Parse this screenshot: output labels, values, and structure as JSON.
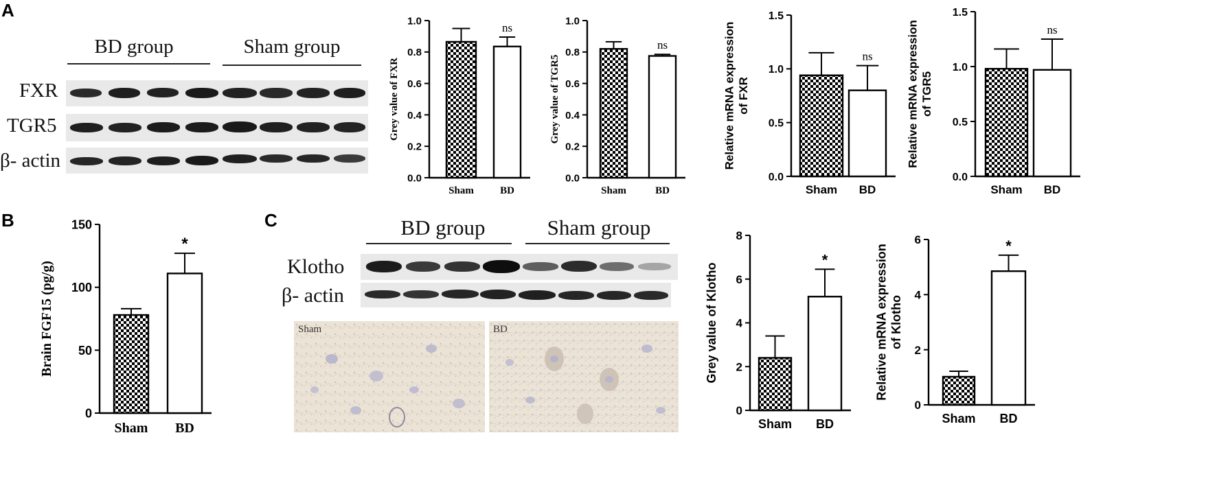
{
  "panel_letters": {
    "a": "A",
    "b": "B",
    "c": "C"
  },
  "western_blots": {
    "panel_a": {
      "group_labels": [
        "BD group",
        "Sham group"
      ],
      "row_labels": [
        "FXR",
        "TGR5",
        "β- actin"
      ]
    },
    "panel_c": {
      "group_labels": [
        "BD group",
        "Sham group"
      ],
      "row_labels": [
        "Klotho",
        "β- actin"
      ]
    }
  },
  "micrographs": [
    "Sham",
    "BD"
  ],
  "colors": {
    "bar_edge": "#000000",
    "bd_fill": "#ffffff",
    "sham_pattern": "checkerboard black/white",
    "blot_background": "#e9e9e9",
    "micrograph_tint": "#ece3d7"
  },
  "chart_data": [
    {
      "type": "bar",
      "panel": "A",
      "categories": [
        "Sham",
        "BD"
      ],
      "values": [
        0.865,
        0.835
      ],
      "errors": [
        0.085,
        0.06
      ],
      "ylabel": "Grey value of FXR",
      "ylim": [
        0,
        1.0
      ],
      "yticks": [
        "0.0",
        "0.2",
        "0.4",
        "0.6",
        "0.8",
        "1.0"
      ],
      "annotations": [
        "",
        "ns"
      ]
    },
    {
      "type": "bar",
      "panel": "A",
      "categories": [
        "Sham",
        "BD"
      ],
      "values": [
        0.82,
        0.775
      ],
      "errors": [
        0.045,
        0.01
      ],
      "ylabel": "Grey value of TGR5",
      "ylim": [
        0,
        1.0
      ],
      "yticks": [
        "0.0",
        "0.2",
        "0.4",
        "0.6",
        "0.8",
        "1.0"
      ],
      "annotations": [
        "",
        "ns"
      ]
    },
    {
      "type": "bar",
      "panel": "A",
      "categories": [
        "Sham",
        "BD"
      ],
      "values": [
        0.94,
        0.8
      ],
      "errors": [
        0.21,
        0.23
      ],
      "ylabel": "Relative mRNA expression of FXR",
      "ylim": [
        0,
        1.5
      ],
      "yticks": [
        "0.0",
        "0.5",
        "1.0",
        "1.5"
      ],
      "annotations": [
        "",
        "ns"
      ]
    },
    {
      "type": "bar",
      "panel": "A",
      "categories": [
        "Sham",
        "BD"
      ],
      "values": [
        0.98,
        0.97
      ],
      "errors": [
        0.18,
        0.28
      ],
      "ylabel": "Relative mRNA expression of TGR5",
      "ylim": [
        0,
        1.5
      ],
      "yticks": [
        "0.0",
        "0.5",
        "1.0",
        "1.5"
      ],
      "annotations": [
        "",
        "ns"
      ]
    },
    {
      "type": "bar",
      "panel": "B",
      "categories": [
        "Sham",
        "BD"
      ],
      "values": [
        78,
        111
      ],
      "errors": [
        5,
        16
      ],
      "ylabel": "Brain FGF15 (pg/g)",
      "ylim": [
        0,
        150
      ],
      "yticks": [
        "0",
        "50",
        "100",
        "150"
      ],
      "annotations": [
        "",
        "*"
      ]
    },
    {
      "type": "bar",
      "panel": "C",
      "categories": [
        "Sham",
        "BD"
      ],
      "values": [
        2.4,
        5.2
      ],
      "errors": [
        1.0,
        1.25
      ],
      "ylabel": "Grey value of Klotho",
      "ylim": [
        0,
        8
      ],
      "yticks": [
        "0",
        "2",
        "4",
        "6",
        "8"
      ],
      "annotations": [
        "",
        "*"
      ]
    },
    {
      "type": "bar",
      "panel": "C",
      "categories": [
        "Sham",
        "BD"
      ],
      "values": [
        1.02,
        4.85
      ],
      "errors": [
        0.2,
        0.58
      ],
      "ylabel": "Relative mRNA expression of Klotho",
      "ylim": [
        0,
        6
      ],
      "yticks": [
        "0",
        "2",
        "4",
        "6"
      ],
      "annotations": [
        "",
        "*"
      ]
    }
  ]
}
